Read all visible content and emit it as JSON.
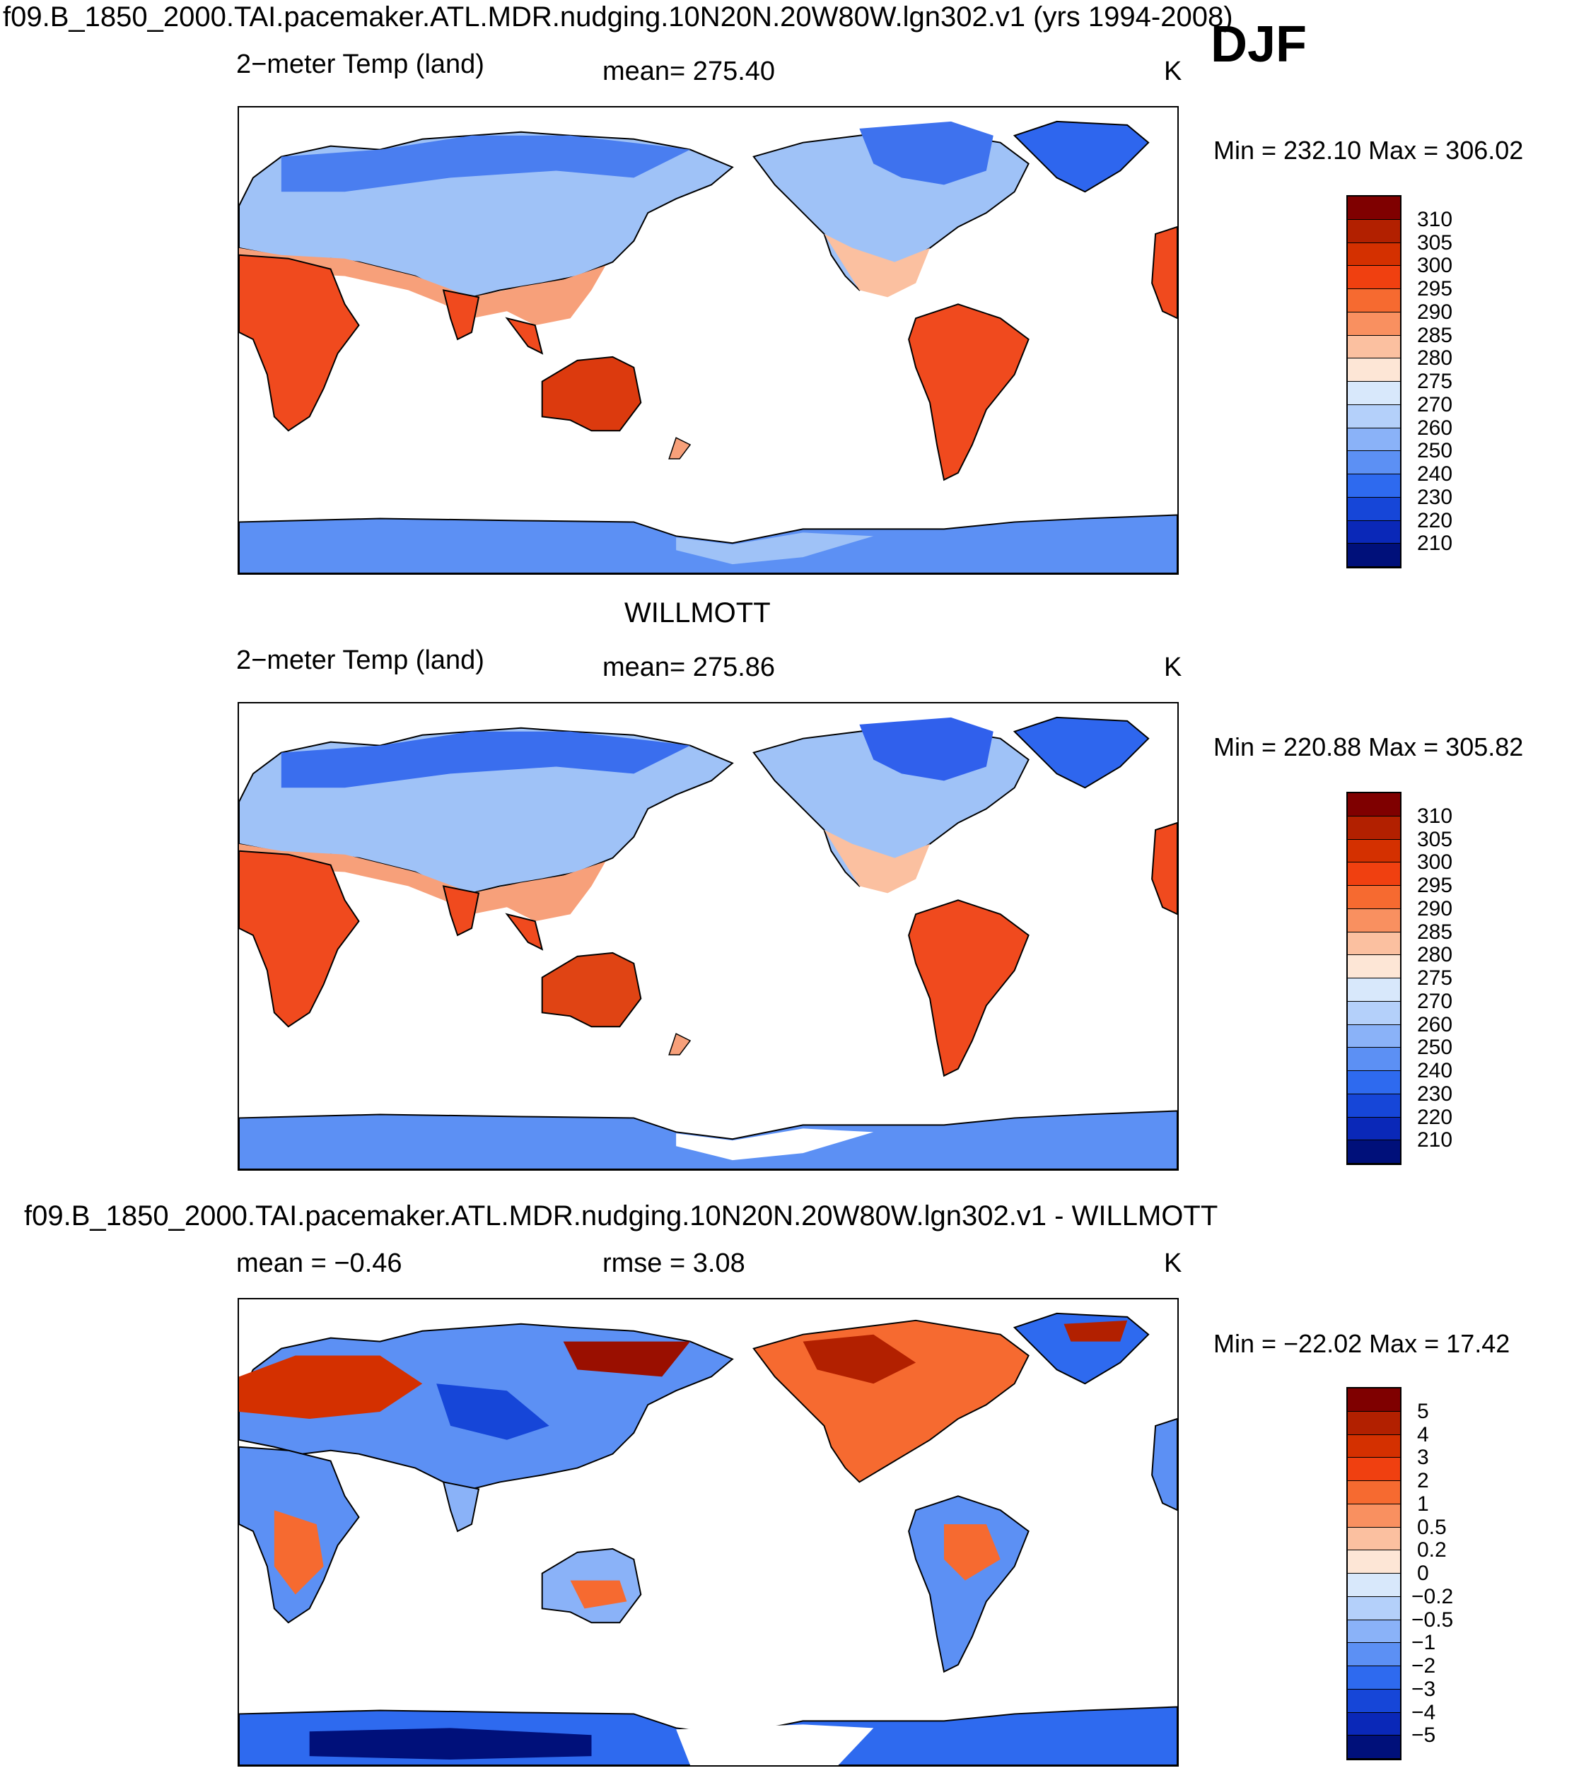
{
  "figure": {
    "title": "f09.B_1850_2000.TAI.pacemaker.ATL.MDR.nudging.10N20N.20W80W.lgn302.v1 (yrs 1994-2008)",
    "season": "DJF"
  },
  "panels": [
    {
      "heading": "",
      "variable": "2−meter Temp (land)",
      "stat_text": "mean=  275.40",
      "units": "K",
      "minmax": "Min  =  232.10  Max  =  306.02",
      "colorbar": {
        "labels": [
          "310",
          "305",
          "300",
          "295",
          "290",
          "285",
          "280",
          "275",
          "270",
          "260",
          "250",
          "240",
          "230",
          "220",
          "210"
        ],
        "colors": [
          "#7f0000",
          "#b22000",
          "#d43000",
          "#f04010",
          "#f66a30",
          "#f99060",
          "#fbc0a0",
          "#fde6d6",
          "#d8e8fb",
          "#b4d0fa",
          "#8ab2f8",
          "#5c90f4",
          "#2e6aef",
          "#1646d8",
          "#0a28b8",
          "#00107a"
        ]
      }
    },
    {
      "heading": "WILLMOTT",
      "variable": "2−meter Temp (land)",
      "stat_text": "mean=  275.86",
      "units": "K",
      "minmax": "Min  =  220.88  Max  =  305.82",
      "colorbar": {
        "labels": [
          "310",
          "305",
          "300",
          "295",
          "290",
          "285",
          "280",
          "275",
          "270",
          "260",
          "250",
          "240",
          "230",
          "220",
          "210"
        ],
        "colors": [
          "#7f0000",
          "#b22000",
          "#d43000",
          "#f04010",
          "#f66a30",
          "#f99060",
          "#fbc0a0",
          "#fde6d6",
          "#d8e8fb",
          "#b4d0fa",
          "#8ab2f8",
          "#5c90f4",
          "#2e6aef",
          "#1646d8",
          "#0a28b8",
          "#00107a"
        ]
      }
    },
    {
      "heading": "f09.B_1850_2000.TAI.pacemaker.ATL.MDR.nudging.10N20N.20W80W.lgn302.v1 - WILLMOTT",
      "variable": "mean  =   −0.46",
      "stat_text": "rmse  =      3.08",
      "units": "K",
      "minmax": "Min  =  −22.02  Max  =    17.42",
      "colorbar": {
        "labels": [
          "5",
          "4",
          "3",
          "2",
          "1",
          "0.5",
          "0.2",
          "0",
          "−0.2",
          "−0.5",
          "−1",
          "−2",
          "−3",
          "−4",
          "−5"
        ],
        "colors": [
          "#7f0000",
          "#b22000",
          "#d43000",
          "#f04010",
          "#f66a30",
          "#f99060",
          "#fbc0a0",
          "#fde6d6",
          "#d8e8fb",
          "#b4d0fa",
          "#8ab2f8",
          "#5c90f4",
          "#2e6aef",
          "#1646d8",
          "#0a28b8",
          "#00107a"
        ]
      }
    }
  ]
}
